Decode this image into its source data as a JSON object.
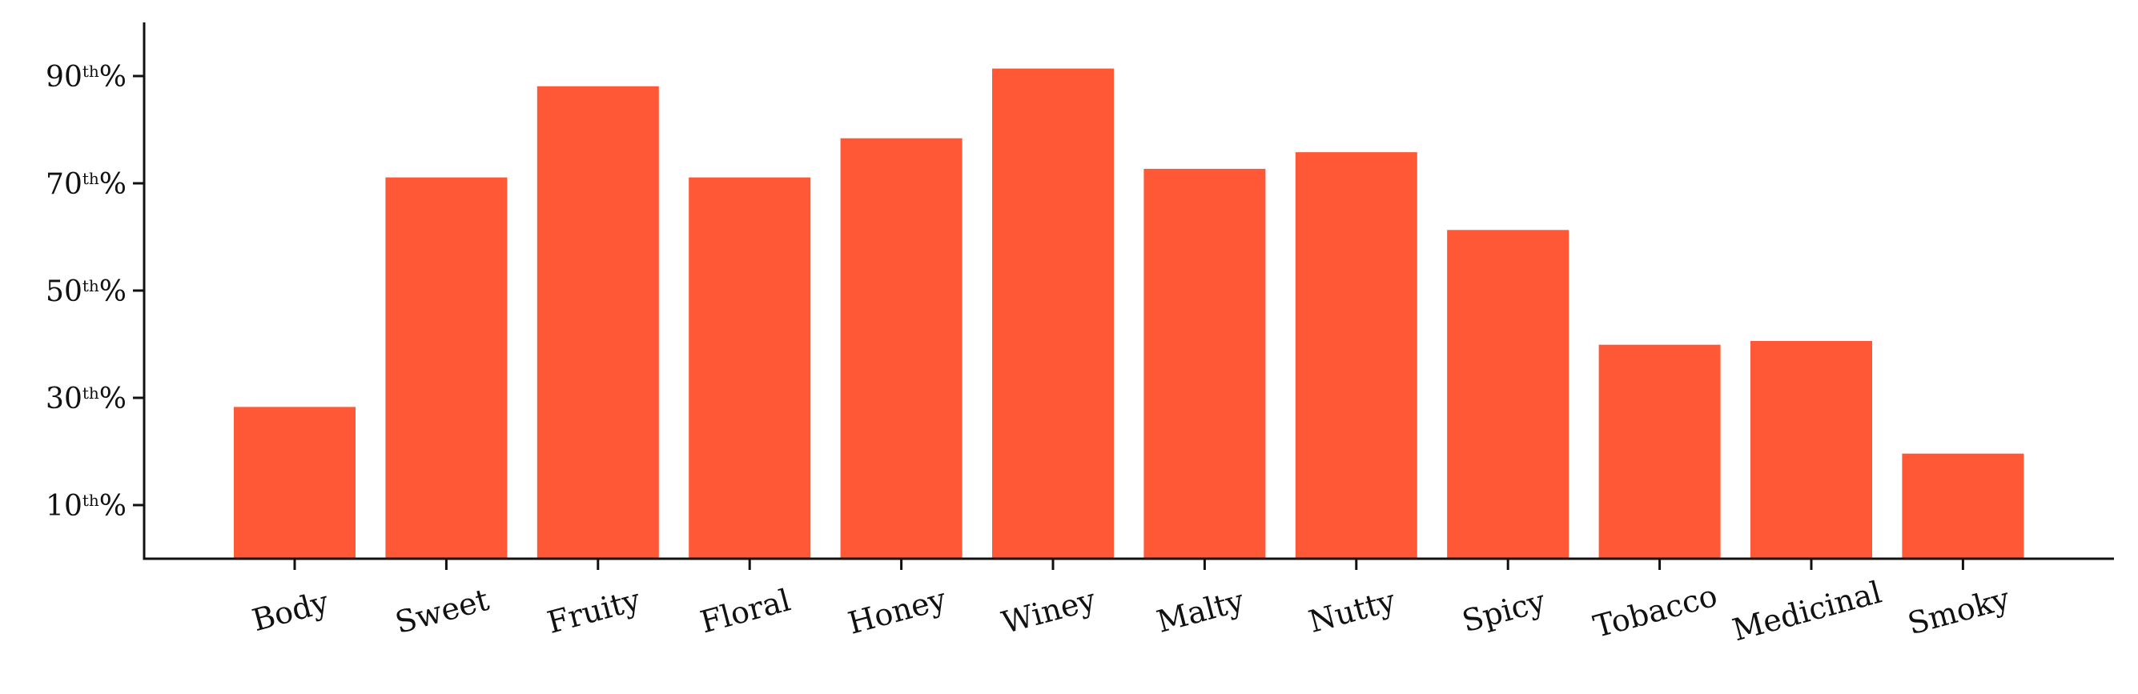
{
  "chart_data": {
    "type": "bar",
    "categories": [
      "Body",
      "Sweet",
      "Fruity",
      "Floral",
      "Honey",
      "Winey",
      "Malty",
      "Nutty",
      "Spicy",
      "Tobacco",
      "Medicinal",
      "Smoky"
    ],
    "values": [
      28.3,
      71.1,
      88.1,
      71.1,
      78.4,
      91.4,
      72.7,
      75.8,
      61.3,
      39.9,
      40.6,
      19.6
    ],
    "bar_color": "#FF5837",
    "ylim": [
      0,
      100
    ],
    "yticks": [
      {
        "value": 10,
        "num": "10",
        "sup": "th",
        "suffix": "%"
      },
      {
        "value": 30,
        "num": "30",
        "sup": "th",
        "suffix": "%"
      },
      {
        "value": 50,
        "num": "50",
        "sup": "th",
        "suffix": "%"
      },
      {
        "value": 70,
        "num": "70",
        "sup": "th",
        "suffix": "%"
      },
      {
        "value": 90,
        "num": "90",
        "sup": "th",
        "suffix": "%"
      }
    ],
    "title": "",
    "xlabel": "",
    "ylabel": "",
    "grid": false,
    "legend": "none"
  }
}
